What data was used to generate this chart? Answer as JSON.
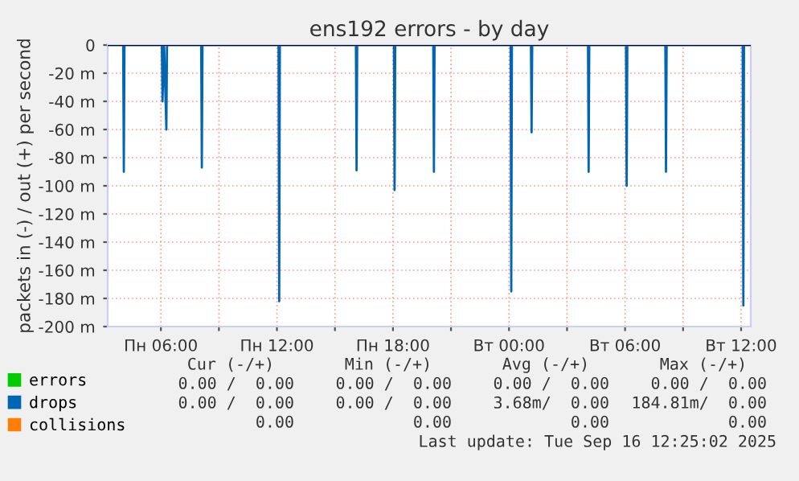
{
  "chart_data": {
    "type": "line",
    "title": "ens192 errors - by day",
    "ylabel": "packets in (-) / out (+) per second",
    "xlim": [
      "2025-09-15T03:15",
      "2025-09-16T12:30"
    ],
    "xticks": [
      {
        "value": "2025-09-15T06:00",
        "label": "Пн 06:00"
      },
      {
        "value": "2025-09-15T09:00",
        "label": null
      },
      {
        "value": "2025-09-15T12:00",
        "label": "Пн 12:00"
      },
      {
        "value": "2025-09-15T15:00",
        "label": null
      },
      {
        "value": "2025-09-15T18:00",
        "label": "Пн 18:00"
      },
      {
        "value": "2025-09-15T21:00",
        "label": null
      },
      {
        "value": "2025-09-16T00:00",
        "label": "Вт 00:00"
      },
      {
        "value": "2025-09-16T03:00",
        "label": null
      },
      {
        "value": "2025-09-16T06:00",
        "label": "Вт 06:00"
      },
      {
        "value": "2025-09-16T09:00",
        "label": null
      },
      {
        "value": "2025-09-16T12:00",
        "label": "Вт 12:00"
      }
    ],
    "ylim": [
      -200,
      0
    ],
    "yticks": [
      {
        "value": -200,
        "label": "-200 m"
      },
      {
        "value": -180,
        "label": "-180 m"
      },
      {
        "value": -160,
        "label": "-160 m"
      },
      {
        "value": -140,
        "label": "-140 m"
      },
      {
        "value": -120,
        "label": "-120 m"
      },
      {
        "value": -100,
        "label": "-100 m"
      },
      {
        "value": -80,
        "label": "-80 m"
      },
      {
        "value": -60,
        "label": "-60 m"
      },
      {
        "value": -40,
        "label": "-40 m"
      },
      {
        "value": -20,
        "label": "-20 m"
      },
      0
    ],
    "grid": true,
    "legend": "bottom",
    "marker": "none",
    "line_style": "solid",
    "ref_lines": [
      {
        "axis": "y",
        "value": 0,
        "color": "#000000"
      }
    ],
    "series": [
      {
        "name": "errors",
        "color": "#00cc00"
      },
      {
        "name": "drops",
        "color": "#0066b3",
        "x": [
          "2025-09-15T03:15",
          "2025-09-15T04:03",
          "2025-09-15T04:05",
          "2025-09-15T04:07",
          "2025-09-15T06:03",
          "2025-09-15T06:05",
          "2025-09-15T06:10",
          "2025-09-15T06:17",
          "2025-09-15T06:19",
          "2025-09-15T08:05",
          "2025-09-15T08:07",
          "2025-09-15T08:09",
          "2025-09-15T12:05",
          "2025-09-15T12:07",
          "2025-09-15T12:09",
          "2025-09-15T16:05",
          "2025-09-15T16:07",
          "2025-09-15T16:09",
          "2025-09-15T18:03",
          "2025-09-15T18:05",
          "2025-09-15T18:07",
          "2025-09-15T20:05",
          "2025-09-15T20:07",
          "2025-09-15T20:09",
          "2025-09-16T00:05",
          "2025-09-16T00:07",
          "2025-09-16T00:09",
          "2025-09-16T01:08",
          "2025-09-16T01:10",
          "2025-09-16T01:12",
          "2025-09-16T04:05",
          "2025-09-16T04:07",
          "2025-09-16T04:09",
          "2025-09-16T06:03",
          "2025-09-16T06:05",
          "2025-09-16T06:07",
          "2025-09-16T08:05",
          "2025-09-16T08:07",
          "2025-09-16T08:09",
          "2025-09-16T12:05",
          "2025-09-16T12:07",
          "2025-09-16T12:09",
          "2025-09-16T12:30"
        ],
        "values": [
          0,
          0,
          -90,
          0,
          0,
          -40,
          0,
          -60,
          0,
          0,
          -87,
          0,
          0,
          -182,
          0,
          0,
          -89,
          0,
          0,
          -103,
          0,
          0,
          -90,
          0,
          0,
          -175,
          0,
          0,
          -62,
          0,
          0,
          -90,
          0,
          0,
          -100,
          0,
          0,
          -90,
          0,
          0,
          -185,
          0,
          0
        ]
      },
      {
        "name": "collisions",
        "color": "#ff8000"
      }
    ],
    "annotations": [
      "Cur (-/+)",
      "Min (-/+)",
      "Avg (-/+)",
      "Max (-/+)",
      "0.00 /  0.00",
      "0.00 /  0.00",
      "0.00 /  0.00",
      "0.00 /  0.00",
      "0.00 /  0.00",
      "0.00 /  0.00",
      "3.68m/  0.00",
      "184.81m/  0.00",
      "0.00",
      "0.00",
      "0.00",
      "0.00",
      "Last update: Tue Sep 16 12:25:02 2025"
    ]
  }
}
